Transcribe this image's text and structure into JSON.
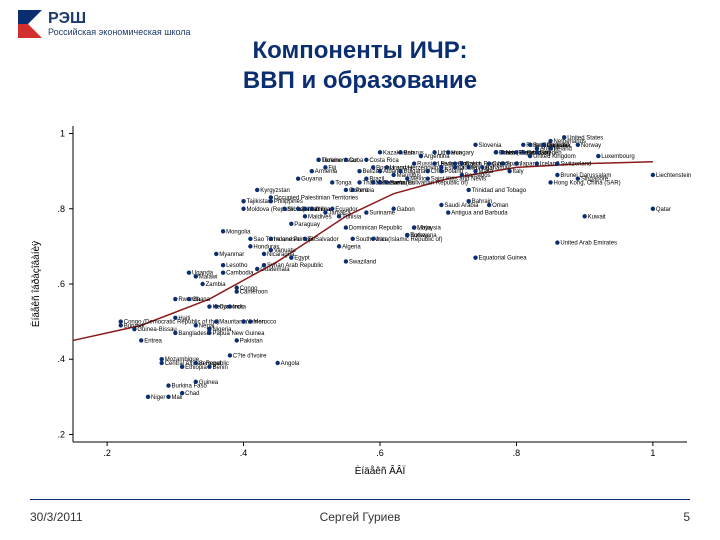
{
  "logo": {
    "acronym": "РЭШ",
    "subtitle": "Российская\nэкономическая\nшкола"
  },
  "title": {
    "line1": "Компоненты ИЧР:",
    "line2": "ВВП и образование"
  },
  "footer": {
    "date": "30/3/2011",
    "author": "Сергей Гуриев",
    "page": "5"
  },
  "chart": {
    "type": "scatter",
    "xlabel": "Èíäåêñ ÂÂÏ",
    "ylabel": "Èíäåêñ îáðàçîâàíèÿ",
    "label_fontsize": 10,
    "tick_fontsize": 9,
    "point_label_fontsize": 6,
    "xlim": [
      0.15,
      1.05
    ],
    "ylim": [
      0.18,
      1.02
    ],
    "xticks": [
      0.2,
      0.4,
      0.6,
      0.8,
      1.0
    ],
    "yticks": [
      0.2,
      0.4,
      0.6,
      0.8,
      1.0
    ],
    "xtick_labels": [
      ".2",
      ".4",
      ".6",
      ".8",
      "1"
    ],
    "ytick_labels": [
      ".2",
      ".4",
      ".6",
      ".8",
      "1"
    ],
    "colors": {
      "background": "#ffffff",
      "plot_bg": "#ffffff",
      "axis": "#000000",
      "tick_text": "#000000",
      "point_fill": "#0b2e70",
      "point_label": "#000000",
      "trend_line": "#8b1a1a"
    },
    "marker": {
      "shape": "circle",
      "radius": 2.2
    },
    "trend": {
      "pts": [
        [
          0.15,
          0.45
        ],
        [
          0.25,
          0.49
        ],
        [
          0.35,
          0.56
        ],
        [
          0.45,
          0.66
        ],
        [
          0.55,
          0.78
        ],
        [
          0.62,
          0.84
        ],
        [
          0.7,
          0.88
        ],
        [
          0.8,
          0.91
        ],
        [
          0.9,
          0.92
        ],
        [
          1.0,
          0.925
        ]
      ],
      "width": 1.5
    },
    "points": [
      {
        "x": 0.22,
        "y": 0.5,
        "l": "Congo (Democratic Republic of the)"
      },
      {
        "x": 0.22,
        "y": 0.49,
        "l": "Burundi"
      },
      {
        "x": 0.24,
        "y": 0.48,
        "l": "Guinea-Bissau"
      },
      {
        "x": 0.25,
        "y": 0.45,
        "l": "Eritrea"
      },
      {
        "x": 0.26,
        "y": 0.3,
        "l": "Niger"
      },
      {
        "x": 0.29,
        "y": 0.3,
        "l": "Mali"
      },
      {
        "x": 0.29,
        "y": 0.33,
        "l": "Burkina Faso"
      },
      {
        "x": 0.31,
        "y": 0.31,
        "l": "Chad"
      },
      {
        "x": 0.28,
        "y": 0.39,
        "l": "Central African Republic"
      },
      {
        "x": 0.28,
        "y": 0.4,
        "l": "Mozambique"
      },
      {
        "x": 0.3,
        "y": 0.47,
        "l": "Bangladesh"
      },
      {
        "x": 0.3,
        "y": 0.51,
        "l": "Haiti"
      },
      {
        "x": 0.3,
        "y": 0.56,
        "l": "Rwanda"
      },
      {
        "x": 0.31,
        "y": 0.38,
        "l": "Ethiopia"
      },
      {
        "x": 0.32,
        "y": 0.56,
        "l": "Ghana"
      },
      {
        "x": 0.32,
        "y": 0.63,
        "l": "Uganda"
      },
      {
        "x": 0.33,
        "y": 0.62,
        "l": "Malawi"
      },
      {
        "x": 0.33,
        "y": 0.49,
        "l": "Nepal"
      },
      {
        "x": 0.33,
        "y": 0.34,
        "l": "Guinea"
      },
      {
        "x": 0.33,
        "y": 0.39,
        "l": "Senegal"
      },
      {
        "x": 0.34,
        "y": 0.6,
        "l": "Zambia"
      },
      {
        "x": 0.35,
        "y": 0.54,
        "l": "Kenya"
      },
      {
        "x": 0.35,
        "y": 0.48,
        "l": "Nigeria"
      },
      {
        "x": 0.35,
        "y": 0.38,
        "l": "Benin"
      },
      {
        "x": 0.35,
        "y": 0.47,
        "l": "Papua New Guinea"
      },
      {
        "x": 0.36,
        "y": 0.5,
        "l": "Mauritania"
      },
      {
        "x": 0.36,
        "y": 0.54,
        "l": "Comoros"
      },
      {
        "x": 0.36,
        "y": 0.68,
        "l": "Myanmar"
      },
      {
        "x": 0.37,
        "y": 0.74,
        "l": "Mongolia"
      },
      {
        "x": 0.37,
        "y": 0.63,
        "l": "Cambodia"
      },
      {
        "x": 0.37,
        "y": 0.65,
        "l": "Lesotho"
      },
      {
        "x": 0.38,
        "y": 0.41,
        "l": "C?te d'Ivoire"
      },
      {
        "x": 0.38,
        "y": 0.54,
        "l": "India"
      },
      {
        "x": 0.39,
        "y": 0.45,
        "l": "Pakistan"
      },
      {
        "x": 0.39,
        "y": 0.59,
        "l": "Congo"
      },
      {
        "x": 0.39,
        "y": 0.58,
        "l": "Cameroon"
      },
      {
        "x": 0.4,
        "y": 0.5,
        "l": "Yemen"
      },
      {
        "x": 0.4,
        "y": 0.8,
        "l": "Moldova (Republic of)"
      },
      {
        "x": 0.4,
        "y": 0.82,
        "l": "Tajikistan"
      },
      {
        "x": 0.41,
        "y": 0.72,
        "l": "Sao Tome and Principe"
      },
      {
        "x": 0.41,
        "y": 0.5,
        "l": "Morocco"
      },
      {
        "x": 0.41,
        "y": 0.7,
        "l": "Honduras"
      },
      {
        "x": 0.42,
        "y": 0.64,
        "l": "Guatemala"
      },
      {
        "x": 0.42,
        "y": 0.85,
        "l": "Kyrgyzstan"
      },
      {
        "x": 0.43,
        "y": 0.65,
        "l": "Syrian Arab Republic"
      },
      {
        "x": 0.43,
        "y": 0.68,
        "l": "Nicaragua"
      },
      {
        "x": 0.44,
        "y": 0.83,
        "l": "Occupied Palestinian Territories"
      },
      {
        "x": 0.44,
        "y": 0.69,
        "l": "Vanuatu"
      },
      {
        "x": 0.44,
        "y": 0.82,
        "l": "Philippines"
      },
      {
        "x": 0.44,
        "y": 0.72,
        "l": "Indonesia"
      },
      {
        "x": 0.45,
        "y": 0.39,
        "l": "Angola"
      },
      {
        "x": 0.46,
        "y": 0.8,
        "l": "Sri Lanka"
      },
      {
        "x": 0.47,
        "y": 0.67,
        "l": "Egypt"
      },
      {
        "x": 0.47,
        "y": 0.76,
        "l": "Paraguay"
      },
      {
        "x": 0.48,
        "y": 0.8,
        "l": "Jordan"
      },
      {
        "x": 0.48,
        "y": 0.88,
        "l": "Guyana"
      },
      {
        "x": 0.49,
        "y": 0.72,
        "l": "El Salvador"
      },
      {
        "x": 0.49,
        "y": 0.8,
        "l": "Namibia"
      },
      {
        "x": 0.49,
        "y": 0.78,
        "l": "Maldives"
      },
      {
        "x": 0.5,
        "y": 0.8,
        "l": "China"
      },
      {
        "x": 0.5,
        "y": 0.9,
        "l": "Armenia"
      },
      {
        "x": 0.51,
        "y": 0.93,
        "l": "Turkmenistan"
      },
      {
        "x": 0.51,
        "y": 0.93,
        "l": "Ukraine"
      },
      {
        "x": 0.52,
        "y": 0.79,
        "l": "Jamaica"
      },
      {
        "x": 0.52,
        "y": 0.91,
        "l": "Fiji"
      },
      {
        "x": 0.53,
        "y": 0.8,
        "l": "Ecuador"
      },
      {
        "x": 0.53,
        "y": 0.87,
        "l": "Tonga"
      },
      {
        "x": 0.54,
        "y": 0.78,
        "l": "Tunisia"
      },
      {
        "x": 0.54,
        "y": 0.7,
        "l": "Algeria"
      },
      {
        "x": 0.55,
        "y": 0.75,
        "l": "Dominican Republic"
      },
      {
        "x": 0.55,
        "y": 0.85,
        "l": "Colombia"
      },
      {
        "x": 0.55,
        "y": 0.93,
        "l": "Cuba"
      },
      {
        "x": 0.55,
        "y": 0.66,
        "l": "Swaziland"
      },
      {
        "x": 0.56,
        "y": 0.85,
        "l": "Peru"
      },
      {
        "x": 0.56,
        "y": 0.72,
        "l": "South Africa"
      },
      {
        "x": 0.57,
        "y": 0.9,
        "l": "Belize"
      },
      {
        "x": 0.57,
        "y": 0.87,
        "l": "Thailand"
      },
      {
        "x": 0.58,
        "y": 0.79,
        "l": "Suriname"
      },
      {
        "x": 0.58,
        "y": 0.88,
        "l": "Brazil"
      },
      {
        "x": 0.58,
        "y": 0.93,
        "l": "Costa Rica"
      },
      {
        "x": 0.59,
        "y": 0.87,
        "l": "Venezuela (Bolivarian Republic of)"
      },
      {
        "x": 0.59,
        "y": 0.91,
        "l": "Bosnia and Herzegovina"
      },
      {
        "x": 0.59,
        "y": 0.72,
        "l": "Iran (Islamic Republic of)"
      },
      {
        "x": 0.6,
        "y": 0.87,
        "l": "Panama"
      },
      {
        "x": 0.6,
        "y": 0.9,
        "l": "Albania"
      },
      {
        "x": 0.6,
        "y": 0.95,
        "l": "Kazakhstan"
      },
      {
        "x": 0.61,
        "y": 0.87,
        "l": "Romania"
      },
      {
        "x": 0.61,
        "y": 0.91,
        "l": "Uruguay"
      },
      {
        "x": 0.62,
        "y": 0.8,
        "l": "Gabon"
      },
      {
        "x": 0.62,
        "y": 0.89,
        "l": "Mauritius"
      },
      {
        "x": 0.63,
        "y": 0.95,
        "l": "Belarus"
      },
      {
        "x": 0.63,
        "y": 0.9,
        "l": "Bulgaria"
      },
      {
        "x": 0.64,
        "y": 0.88,
        "l": "Mexico"
      },
      {
        "x": 0.64,
        "y": 0.73,
        "l": "Turkey"
      },
      {
        "x": 0.64,
        "y": 0.73,
        "l": "Botswana"
      },
      {
        "x": 0.65,
        "y": 0.75,
        "l": "Libya"
      },
      {
        "x": 0.65,
        "y": 0.92,
        "l": "Russian Federation"
      },
      {
        "x": 0.65,
        "y": 0.75,
        "l": "Malaysia"
      },
      {
        "x": 0.66,
        "y": 0.94,
        "l": "Argentina"
      },
      {
        "x": 0.67,
        "y": 0.9,
        "l": "Chile"
      },
      {
        "x": 0.67,
        "y": 0.88,
        "l": "Saint Kitts and Nevis"
      },
      {
        "x": 0.68,
        "y": 0.95,
        "l": "Lithuania"
      },
      {
        "x": 0.68,
        "y": 0.92,
        "l": "Latvia"
      },
      {
        "x": 0.69,
        "y": 0.9,
        "l": "Poland"
      },
      {
        "x": 0.69,
        "y": 0.91,
        "l": "Estonia"
      },
      {
        "x": 0.69,
        "y": 0.81,
        "l": "Saudi Arabia"
      },
      {
        "x": 0.7,
        "y": 0.79,
        "l": "Antigua and Barbuda"
      },
      {
        "x": 0.7,
        "y": 0.95,
        "l": "Hungary"
      },
      {
        "x": 0.71,
        "y": 0.91,
        "l": "Croatia"
      },
      {
        "x": 0.71,
        "y": 0.92,
        "l": "Slovakia"
      },
      {
        "x": 0.72,
        "y": 0.89,
        "l": "Barbados"
      },
      {
        "x": 0.72,
        "y": 0.92,
        "l": "Czech Republic"
      },
      {
        "x": 0.73,
        "y": 0.85,
        "l": "Trinidad and Tobago"
      },
      {
        "x": 0.73,
        "y": 0.91,
        "l": "Portugal"
      },
      {
        "x": 0.73,
        "y": 0.82,
        "l": "Bahrain"
      },
      {
        "x": 0.74,
        "y": 0.9,
        "l": "Malta"
      },
      {
        "x": 0.74,
        "y": 0.97,
        "l": "Slovenia"
      },
      {
        "x": 0.74,
        "y": 0.67,
        "l": "Equatorial Guinea"
      },
      {
        "x": 0.75,
        "y": 0.91,
        "l": "Bahamas"
      },
      {
        "x": 0.76,
        "y": 0.92,
        "l": "Cyprus"
      },
      {
        "x": 0.76,
        "y": 0.81,
        "l": "Oman"
      },
      {
        "x": 0.77,
        "y": 0.95,
        "l": "Israel"
      },
      {
        "x": 0.77,
        "y": 0.95,
        "l": "Korea (Republic of)"
      },
      {
        "x": 0.77,
        "y": 0.95,
        "l": "Greece"
      },
      {
        "x": 0.78,
        "y": 0.95,
        "l": "New Zealand"
      },
      {
        "x": 0.78,
        "y": 0.92,
        "l": "Spain"
      },
      {
        "x": 0.79,
        "y": 0.9,
        "l": "Italy"
      },
      {
        "x": 0.8,
        "y": 0.95,
        "l": "France"
      },
      {
        "x": 0.8,
        "y": 0.92,
        "l": "Japan"
      },
      {
        "x": 0.81,
        "y": 0.95,
        "l": "Germany"
      },
      {
        "x": 0.81,
        "y": 0.97,
        "l": "Finland"
      },
      {
        "x": 0.82,
        "y": 0.94,
        "l": "United Kingdom"
      },
      {
        "x": 0.82,
        "y": 0.97,
        "l": "Belgium"
      },
      {
        "x": 0.83,
        "y": 0.95,
        "l": "Sweden"
      },
      {
        "x": 0.83,
        "y": 0.96,
        "l": "Austria"
      },
      {
        "x": 0.83,
        "y": 0.92,
        "l": "Iceland"
      },
      {
        "x": 0.84,
        "y": 0.97,
        "l": "Denmark"
      },
      {
        "x": 0.84,
        "y": 0.97,
        "l": "Canada"
      },
      {
        "x": 0.84,
        "y": 0.97,
        "l": "Australia"
      },
      {
        "x": 0.85,
        "y": 0.96,
        "l": "Ireland"
      },
      {
        "x": 0.85,
        "y": 0.98,
        "l": "Netherlands"
      },
      {
        "x": 0.85,
        "y": 0.87,
        "l": "Hong Kong, China (SAR)"
      },
      {
        "x": 0.86,
        "y": 0.92,
        "l": "Switzerland"
      },
      {
        "x": 0.86,
        "y": 0.71,
        "l": "United Arab Emirates"
      },
      {
        "x": 0.86,
        "y": 0.89,
        "l": "Brunei Darussalam"
      },
      {
        "x": 0.87,
        "y": 0.99,
        "l": "United States"
      },
      {
        "x": 0.89,
        "y": 0.97,
        "l": "Norway"
      },
      {
        "x": 0.89,
        "y": 0.88,
        "l": "Singapore"
      },
      {
        "x": 0.9,
        "y": 0.78,
        "l": "Kuwait"
      },
      {
        "x": 0.92,
        "y": 0.94,
        "l": "Luxembourg"
      },
      {
        "x": 1.0,
        "y": 0.8,
        "l": "Qatar"
      },
      {
        "x": 1.0,
        "y": 0.89,
        "l": "Liechtenstein"
      }
    ]
  }
}
